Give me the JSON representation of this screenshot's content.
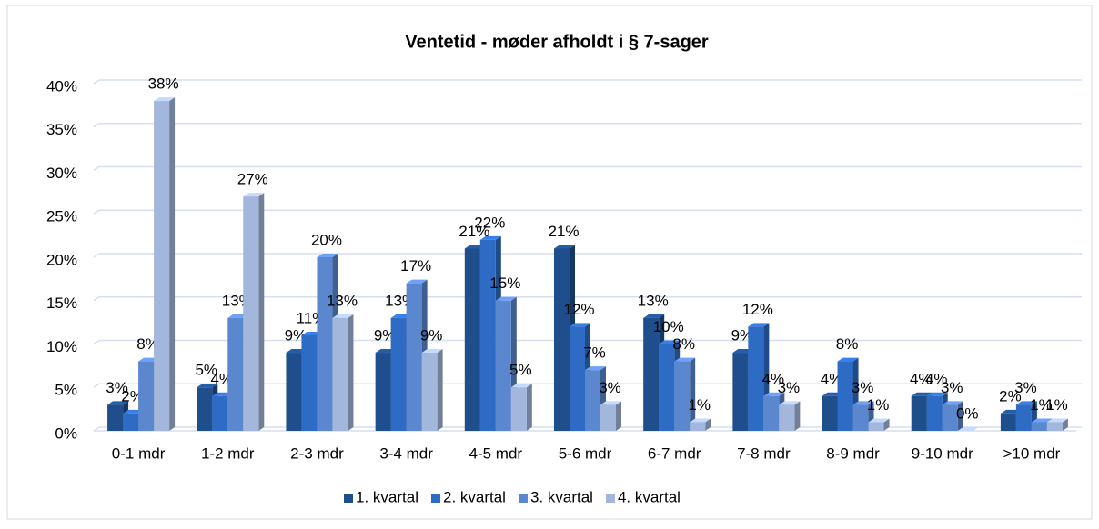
{
  "chart_data": {
    "type": "bar3d",
    "title": "Ventetid - møder afholdt i § 7-sager",
    "categories": [
      "0-1 mdr",
      "1-2 mdr",
      "2-3 mdr",
      "3-4 mdr",
      "4-5 mdr",
      "5-6 mdr",
      "6-7 mdr",
      "7-8 mdr",
      "8-9 mdr",
      "9-10 mdr",
      ">10 mdr"
    ],
    "series": [
      {
        "name": "1. kvartal",
        "color": "#1f4e8c",
        "values": [
          3,
          5,
          9,
          9,
          21,
          21,
          13,
          9,
          4,
          4,
          2
        ],
        "value_labels": [
          "3%",
          "5%",
          "9%",
          "9%",
          "21%",
          "21%",
          "13%",
          "9%",
          "4%",
          "4%",
          "2%"
        ]
      },
      {
        "name": "2. kvartal",
        "color": "#2e6bc4",
        "values": [
          2,
          4,
          11,
          13,
          22,
          12,
          10,
          12,
          8,
          4,
          3
        ],
        "value_labels": [
          "2%",
          "4%",
          "11%",
          "13%",
          "22%",
          "12%",
          "10%",
          "12%",
          "8%",
          "4%",
          "3%"
        ]
      },
      {
        "name": "3. kvartal",
        "color": "#5b87cf",
        "values": [
          8,
          13,
          20,
          17,
          15,
          7,
          8,
          4,
          3,
          3,
          1
        ],
        "value_labels": [
          "8%",
          "13%",
          "20%",
          "17%",
          "15%",
          "7%",
          "8%",
          "4%",
          "3%",
          "3%",
          "1%"
        ]
      },
      {
        "name": "4. kvartal",
        "color": "#a3b6db",
        "values": [
          38,
          27,
          13,
          9,
          5,
          3,
          1,
          3,
          1,
          0,
          1
        ],
        "value_labels": [
          "38%",
          "27%",
          "13%",
          "9%",
          "5%",
          "3%",
          "1%",
          "3%",
          "1%",
          "0%",
          "1%"
        ]
      }
    ],
    "ylim": [
      0,
      40
    ],
    "yticks": [
      {
        "value": 0,
        "label": "0%"
      },
      {
        "value": 5,
        "label": "5%"
      },
      {
        "value": 10,
        "label": "10%"
      },
      {
        "value": 15,
        "label": "15%"
      },
      {
        "value": 20,
        "label": "20%"
      },
      {
        "value": 25,
        "label": "25%"
      },
      {
        "value": 30,
        "label": "30%"
      },
      {
        "value": 35,
        "label": "35%"
      },
      {
        "value": 40,
        "label": "40%"
      }
    ],
    "grid": true,
    "legend": "bottom"
  }
}
